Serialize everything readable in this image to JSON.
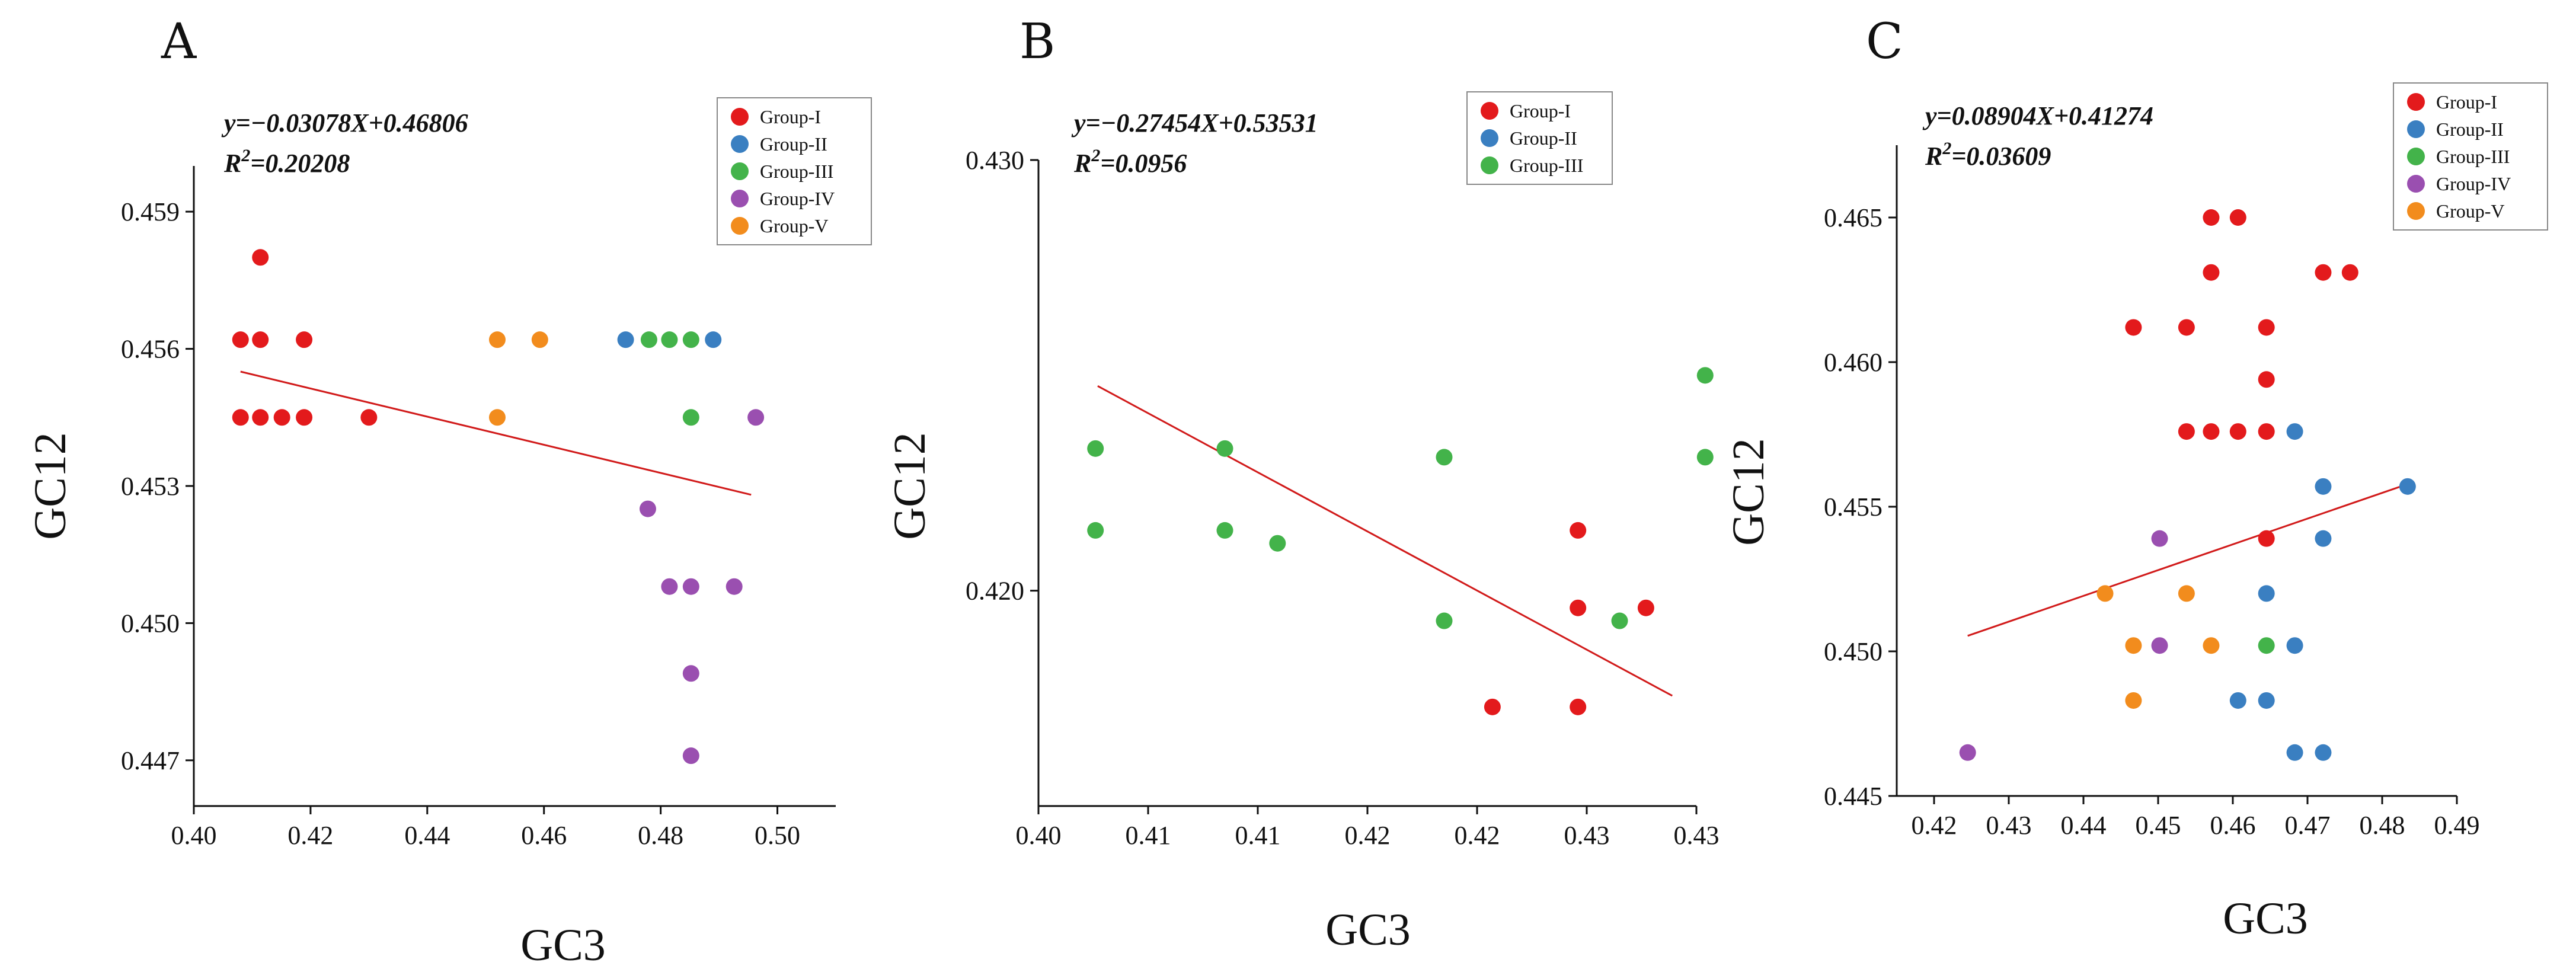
{
  "colors": {
    "Group-I": "#e31a1c",
    "Group-II": "#3a7fc1",
    "Group-III": "#43b34a",
    "Group-IV": "#9a4fb0",
    "Group-V": "#f28c1d",
    "regression": "#d11a1a"
  },
  "chart_data": [
    {
      "type": "scatter",
      "panel": "A",
      "xlabel": "GC3",
      "ylabel": "GC12",
      "xlim": [
        0.4,
        0.51
      ],
      "ylim": [
        0.446,
        0.46
      ],
      "xticks": [
        0.4,
        0.42,
        0.44,
        0.46,
        0.48,
        0.5
      ],
      "xtick_labels": [
        "0.40",
        "0.42",
        "0.44",
        "0.46",
        "0.48",
        "0.50"
      ],
      "yticks": [
        0.447,
        0.45,
        0.453,
        0.456,
        0.459
      ],
      "ytick_labels": [
        "0.447",
        "0.450",
        "0.453",
        "0.456",
        "0.459"
      ],
      "equation": "y=−0.03078X+0.46806",
      "r2_prefix": "R",
      "r2_exp": "2",
      "r2_value": "=0.20208",
      "regression": {
        "slope": -0.03078,
        "intercept": 0.46806,
        "x_range": [
          0.408,
          0.4955
        ]
      },
      "legend": {
        "placement": "top-right",
        "entries": [
          "Group-I",
          "Group-II",
          "Group-III",
          "Group-IV",
          "Group-V"
        ]
      },
      "series": [
        {
          "name": "Group-I",
          "points": [
            [
              0.408,
              0.4562
            ],
            [
              0.4114,
              0.4562
            ],
            [
              0.4114,
              0.458
            ],
            [
              0.4189,
              0.4562
            ],
            [
              0.408,
              0.4545
            ],
            [
              0.4114,
              0.4545
            ],
            [
              0.4151,
              0.4545
            ],
            [
              0.4189,
              0.4545
            ],
            [
              0.43,
              0.4545
            ]
          ]
        },
        {
          "name": "Group-II",
          "points": [
            [
              0.474,
              0.4562
            ],
            [
              0.489,
              0.4562
            ]
          ]
        },
        {
          "name": "Group-III",
          "points": [
            [
              0.478,
              0.4562
            ],
            [
              0.4815,
              0.4562
            ],
            [
              0.4852,
              0.4562
            ],
            [
              0.4852,
              0.4545
            ]
          ]
        },
        {
          "name": "Group-IV",
          "points": [
            [
              0.4778,
              0.4525
            ],
            [
              0.4815,
              0.4508
            ],
            [
              0.4852,
              0.4508
            ],
            [
              0.4926,
              0.4508
            ],
            [
              0.4852,
              0.4489
            ],
            [
              0.4852,
              0.4471
            ],
            [
              0.4963,
              0.4545
            ]
          ]
        },
        {
          "name": "Group-V",
          "points": [
            [
              0.452,
              0.4562
            ],
            [
              0.4593,
              0.4562
            ],
            [
              0.452,
              0.4545
            ]
          ]
        }
      ]
    },
    {
      "type": "scatter",
      "panel": "B",
      "xlabel": "GC3",
      "ylabel": "GC12",
      "xlim": [
        0.4,
        0.43
      ],
      "ylim": [
        0.415,
        0.43
      ],
      "xticks": [
        0.4,
        0.405,
        0.41,
        0.415,
        0.42,
        0.425,
        0.43
      ],
      "xtick_labels": [
        "0.40",
        "0.41",
        "0.41",
        "0.42",
        "0.42",
        "0.43",
        "0.43"
      ],
      "yticks": [
        0.42,
        0.43
      ],
      "ytick_labels": [
        "0.420",
        "0.430"
      ],
      "equation": "y=−0.27454X+0.53531",
      "r2_prefix": "R",
      "r2_exp": "2",
      "r2_value": "=0.0956",
      "regression": {
        "slope": -0.27454,
        "intercept": 0.53531,
        "x_range": [
          0.4027,
          0.4289
        ]
      },
      "legend": {
        "placement": "top-right",
        "entries": [
          "Group-I",
          "Group-II",
          "Group-III"
        ]
      },
      "series": [
        {
          "name": "Group-I",
          "points": [
            [
              0.4207,
              0.4173
            ],
            [
              0.4246,
              0.4173
            ],
            [
              0.4246,
              0.4196
            ],
            [
              0.4246,
              0.4214
            ],
            [
              0.4277,
              0.4196
            ]
          ]
        },
        {
          "name": "Group-II",
          "points": []
        },
        {
          "name": "Group-III",
          "points": [
            [
              0.4026,
              0.4233
            ],
            [
              0.4026,
              0.4214
            ],
            [
              0.4085,
              0.4233
            ],
            [
              0.4085,
              0.4214
            ],
            [
              0.4109,
              0.4211
            ],
            [
              0.4185,
              0.4231
            ],
            [
              0.4185,
              0.4193
            ],
            [
              0.4265,
              0.4193
            ],
            [
              0.4304,
              0.425
            ],
            [
              0.4304,
              0.4231
            ]
          ]
        }
      ]
    },
    {
      "type": "scatter",
      "panel": "C",
      "xlabel": "GC3",
      "ylabel": "GC12",
      "xlim": [
        0.415,
        0.49
      ],
      "ylim": [
        0.445,
        0.4675
      ],
      "xticks": [
        0.42,
        0.43,
        0.44,
        0.45,
        0.46,
        0.47,
        0.48,
        0.49
      ],
      "xtick_labels": [
        "0.42",
        "0.43",
        "0.44",
        "0.45",
        "0.46",
        "0.47",
        "0.48",
        "0.49"
      ],
      "yticks": [
        0.445,
        0.45,
        0.455,
        0.46,
        0.465
      ],
      "ytick_labels": [
        "0.445",
        "0.450",
        "0.455",
        "0.460",
        "0.465"
      ],
      "equation": "y=0.08904X+0.41274",
      "r2_prefix": "R",
      "r2_exp": "2",
      "r2_value": "=0.03609",
      "regression": {
        "slope": 0.08904,
        "intercept": 0.41274,
        "x_range": [
          0.4245,
          0.4835
        ]
      },
      "legend": {
        "placement": "top-right",
        "entries": [
          "Group-I",
          "Group-II",
          "Group-III",
          "Group-IV",
          "Group-V"
        ]
      },
      "series": [
        {
          "name": "Group-I",
          "points": [
            [
              0.4571,
              0.465
            ],
            [
              0.4607,
              0.465
            ],
            [
              0.4571,
              0.4631
            ],
            [
              0.4721,
              0.4631
            ],
            [
              0.4757,
              0.4631
            ],
            [
              0.4467,
              0.4612
            ],
            [
              0.4538,
              0.4612
            ],
            [
              0.4645,
              0.4612
            ],
            [
              0.4645,
              0.4594
            ],
            [
              0.4538,
              0.4576
            ],
            [
              0.4571,
              0.4576
            ],
            [
              0.4607,
              0.4576
            ],
            [
              0.4645,
              0.4576
            ],
            [
              0.4645,
              0.4539
            ]
          ]
        },
        {
          "name": "Group-II",
          "points": [
            [
              0.4683,
              0.4576
            ],
            [
              0.4721,
              0.4557
            ],
            [
              0.4721,
              0.4539
            ],
            [
              0.4834,
              0.4557
            ],
            [
              0.4645,
              0.452
            ],
            [
              0.4683,
              0.4502
            ],
            [
              0.4607,
              0.4483
            ],
            [
              0.4645,
              0.4483
            ],
            [
              0.4683,
              0.4465
            ],
            [
              0.4721,
              0.4465
            ]
          ]
        },
        {
          "name": "Group-III",
          "points": [
            [
              0.4645,
              0.4502
            ]
          ]
        },
        {
          "name": "Group-IV",
          "points": [
            [
              0.4502,
              0.4539
            ],
            [
              0.4502,
              0.4502
            ],
            [
              0.4245,
              0.4465
            ]
          ]
        },
        {
          "name": "Group-V",
          "points": [
            [
              0.4429,
              0.452
            ],
            [
              0.4538,
              0.452
            ],
            [
              0.4467,
              0.4502
            ],
            [
              0.4571,
              0.4502
            ],
            [
              0.4467,
              0.4483
            ]
          ]
        }
      ]
    }
  ]
}
